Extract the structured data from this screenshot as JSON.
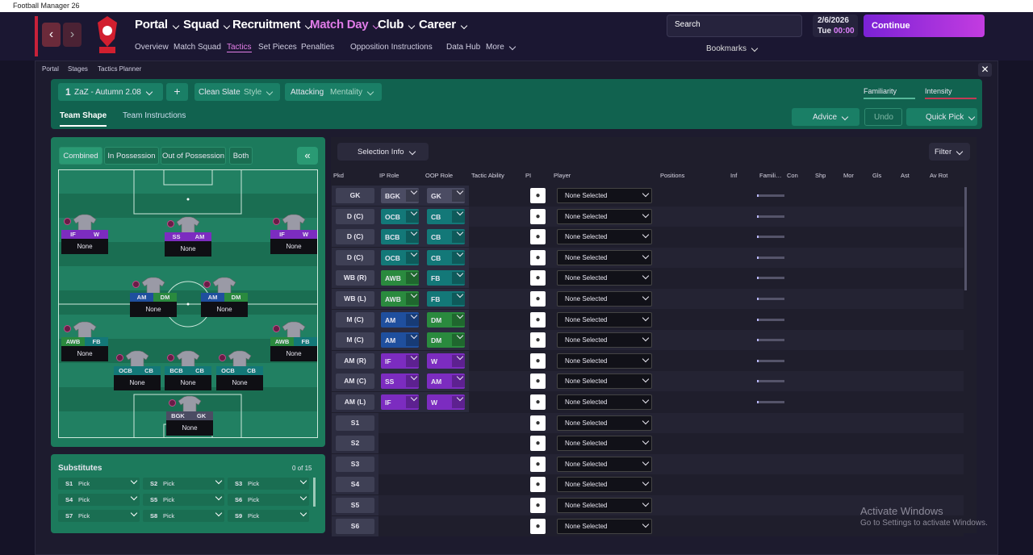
{
  "window": {
    "title": "Football Manager 26"
  },
  "nav": {
    "main": [
      "Portal",
      "Squad",
      "Recruitment",
      "Match Day",
      "Club",
      "Career"
    ],
    "sub": [
      "Overview",
      "Match Squad",
      "Tactics",
      "Set Pieces",
      "Penalties",
      "Opposition Instructions",
      "Data Hub",
      "More"
    ]
  },
  "toolbar": {
    "search": "Search",
    "date": "2/6/2026",
    "day": "Tue",
    "time": "00:00",
    "continue": "Continue",
    "bookmarks": "Bookmarks"
  },
  "breadcrumb": [
    "Portal",
    "Stages",
    "Tactics Planner"
  ],
  "tactic": {
    "slot": "1",
    "name": "ZaZ - Autumn 2.08",
    "style": "Clean Slate",
    "style_label": "Style",
    "mentality": "Attacking",
    "mentality_label": "Mentality",
    "familiarity": "Familiarity",
    "intensity": "Intensity"
  },
  "tabs": [
    "Team Shape",
    "Team Instructions"
  ],
  "actions": {
    "advice": "Advice",
    "undo": "Undo",
    "quick_pick": "Quick Pick"
  },
  "pitch": {
    "views": [
      "Combined",
      "In Possession",
      "Out of Possession",
      "Both"
    ],
    "players": [
      {
        "ip": "IF",
        "oop": "W",
        "name": "None",
        "ip_color": "#7c2cc0",
        "oop_color": "#7c2cc0"
      },
      {
        "ip": "SS",
        "oop": "AM",
        "name": "None",
        "ip_color": "#7c2cc0",
        "oop_color": "#7c2cc0"
      },
      {
        "ip": "IF",
        "oop": "W",
        "name": "None",
        "ip_color": "#7c2cc0",
        "oop_color": "#7c2cc0"
      },
      {
        "ip": "AM",
        "oop": "DM",
        "name": "None",
        "ip_color": "#1f4f9e",
        "oop_color": "#2a8a3e"
      },
      {
        "ip": "AM",
        "oop": "DM",
        "name": "None",
        "ip_color": "#1f4f9e",
        "oop_color": "#2a8a3e"
      },
      {
        "ip": "AWB",
        "oop": "FB",
        "name": "None",
        "ip_color": "#2a8a3e",
        "oop_color": "#137878"
      },
      {
        "ip": "AWB",
        "oop": "FB",
        "name": "None",
        "ip_color": "#2a8a3e",
        "oop_color": "#137878"
      },
      {
        "ip": "OCB",
        "oop": "CB",
        "name": "None",
        "ip_color": "#137878",
        "oop_color": "#137878"
      },
      {
        "ip": "BCB",
        "oop": "CB",
        "name": "None",
        "ip_color": "#137878",
        "oop_color": "#137878"
      },
      {
        "ip": "OCB",
        "oop": "CB",
        "name": "None",
        "ip_color": "#137878",
        "oop_color": "#137878"
      },
      {
        "ip": "BGK",
        "oop": "GK",
        "name": "None",
        "ip_color": "#4b4c63",
        "oop_color": "#4b4c63"
      }
    ]
  },
  "substitutes": {
    "title": "Substitutes",
    "count": "0 of 15",
    "slots": [
      {
        "slot": "S1",
        "pick": "Pick"
      },
      {
        "slot": "S2",
        "pick": "Pick"
      },
      {
        "slot": "S3",
        "pick": "Pick"
      },
      {
        "slot": "S4",
        "pick": "Pick"
      },
      {
        "slot": "S5",
        "pick": "Pick"
      },
      {
        "slot": "S6",
        "pick": "Pick"
      },
      {
        "slot": "S7",
        "pick": "Pick"
      },
      {
        "slot": "S8",
        "pick": "Pick"
      },
      {
        "slot": "S9",
        "pick": "Pick"
      }
    ]
  },
  "selection": {
    "info": "Selection Info",
    "filter": "Filter",
    "columns": [
      "Pkd",
      "IP Role",
      "OOP Role",
      "Tactic Ability",
      "PI",
      "Player",
      "Positions",
      "Inf",
      "Famili…",
      "Con",
      "Shp",
      "Mor",
      "Gls",
      "Ast",
      "Av Rot"
    ],
    "rows": [
      {
        "pos": "GK",
        "ip": "BGK",
        "oop": "GK",
        "player": "None Selected",
        "ip_color": "#4b4c63",
        "oop_color": "#4b4c63"
      },
      {
        "pos": "D (C)",
        "ip": "OCB",
        "oop": "CB",
        "player": "None Selected",
        "ip_color": "#137878",
        "oop_color": "#137878"
      },
      {
        "pos": "D (C)",
        "ip": "BCB",
        "oop": "CB",
        "player": "None Selected",
        "ip_color": "#137878",
        "oop_color": "#137878"
      },
      {
        "pos": "D (C)",
        "ip": "OCB",
        "oop": "CB",
        "player": "None Selected",
        "ip_color": "#137878",
        "oop_color": "#137878"
      },
      {
        "pos": "WB (R)",
        "ip": "AWB",
        "oop": "FB",
        "player": "None Selected",
        "ip_color": "#2a8a3e",
        "oop_color": "#137878"
      },
      {
        "pos": "WB (L)",
        "ip": "AWB",
        "oop": "FB",
        "player": "None Selected",
        "ip_color": "#2a8a3e",
        "oop_color": "#137878"
      },
      {
        "pos": "M (C)",
        "ip": "AM",
        "oop": "DM",
        "player": "None Selected",
        "ip_color": "#1f4f9e",
        "oop_color": "#2a8a3e"
      },
      {
        "pos": "M (C)",
        "ip": "AM",
        "oop": "DM",
        "player": "None Selected",
        "ip_color": "#1f4f9e",
        "oop_color": "#2a8a3e"
      },
      {
        "pos": "AM (R)",
        "ip": "IF",
        "oop": "W",
        "player": "None Selected",
        "ip_color": "#7c2cc0",
        "oop_color": "#7c2cc0"
      },
      {
        "pos": "AM (C)",
        "ip": "SS",
        "oop": "AM",
        "player": "None Selected",
        "ip_color": "#7c2cc0",
        "oop_color": "#7c2cc0"
      },
      {
        "pos": "AM (L)",
        "ip": "IF",
        "oop": "W",
        "player": "None Selected",
        "ip_color": "#7c2cc0",
        "oop_color": "#7c2cc0"
      },
      {
        "pos": "S1",
        "player": "None Selected"
      },
      {
        "pos": "S2",
        "player": "None Selected"
      },
      {
        "pos": "S3",
        "player": "None Selected"
      },
      {
        "pos": "S4",
        "player": "None Selected"
      },
      {
        "pos": "S5",
        "player": "None Selected"
      },
      {
        "pos": "S6",
        "player": "None Selected"
      }
    ]
  },
  "watermark": {
    "title": "Activate Windows",
    "text": "Go to Settings to activate Windows."
  }
}
